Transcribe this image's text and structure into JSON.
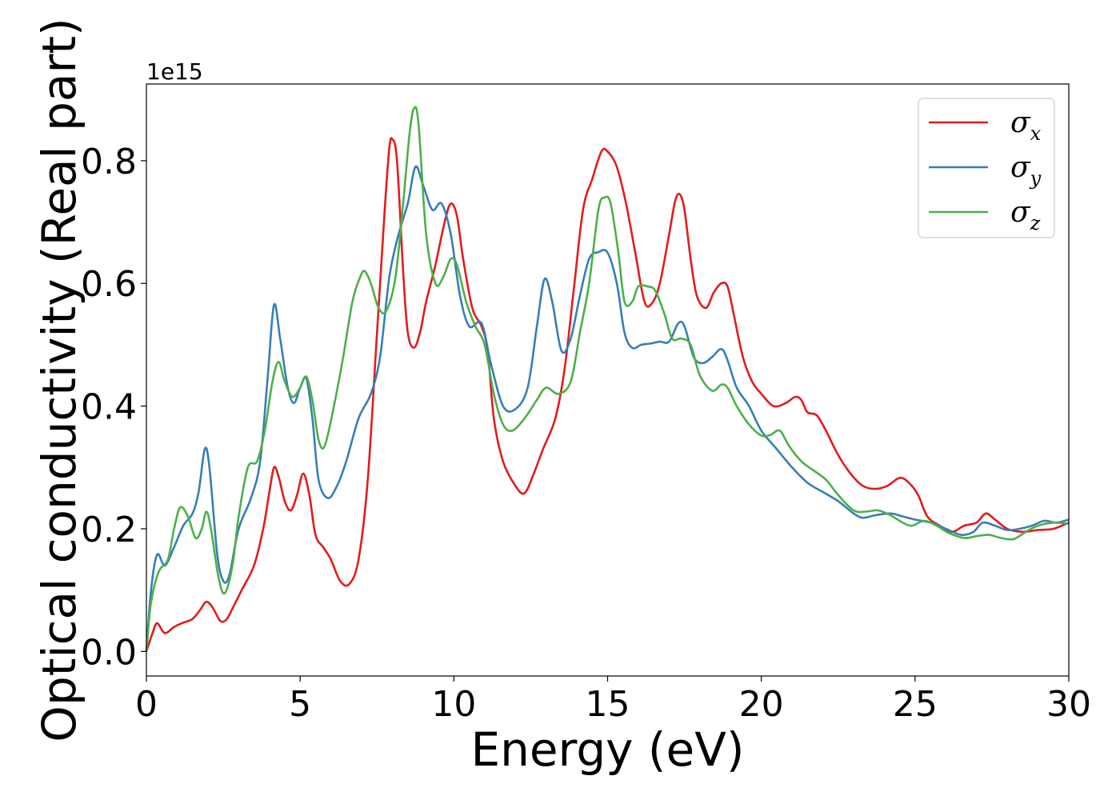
{
  "chart_data": {
    "type": "line",
    "xlabel": "Energy (eV)",
    "ylabel": "Optical conductivity (Real part)",
    "y_offset_label": "1e15",
    "xlim": [
      0,
      30
    ],
    "ylim": [
      -0.04,
      0.925
    ],
    "x_ticks": [
      0,
      5,
      10,
      15,
      20,
      25,
      30
    ],
    "x_tick_labels": [
      "0",
      "5",
      "10",
      "15",
      "20",
      "25",
      "30"
    ],
    "y_ticks": [
      0.0,
      0.2,
      0.4,
      0.6,
      0.8
    ],
    "y_tick_labels": [
      "0.0",
      "0.2",
      "0.4",
      "0.6",
      "0.8"
    ],
    "grid": false,
    "legend_position": "top-right",
    "series": [
      {
        "name": "σx",
        "symbol": "σ",
        "subscript": "x",
        "color": "#e41a1c",
        "points": [
          [
            0,
            0
          ],
          [
            0.2,
            0.03
          ],
          [
            0.35,
            0.046
          ],
          [
            0.6,
            0.03
          ],
          [
            0.9,
            0.04
          ],
          [
            1.2,
            0.047
          ],
          [
            1.5,
            0.053
          ],
          [
            1.75,
            0.068
          ],
          [
            1.95,
            0.081
          ],
          [
            2.15,
            0.072
          ],
          [
            2.4,
            0.05
          ],
          [
            2.6,
            0.052
          ],
          [
            2.8,
            0.07
          ],
          [
            3.1,
            0.1
          ],
          [
            3.5,
            0.14
          ],
          [
            3.8,
            0.2
          ],
          [
            4.0,
            0.26
          ],
          [
            4.15,
            0.3
          ],
          [
            4.3,
            0.285
          ],
          [
            4.5,
            0.245
          ],
          [
            4.7,
            0.23
          ],
          [
            4.9,
            0.255
          ],
          [
            5.1,
            0.29
          ],
          [
            5.3,
            0.255
          ],
          [
            5.5,
            0.19
          ],
          [
            5.75,
            0.17
          ],
          [
            6.0,
            0.15
          ],
          [
            6.3,
            0.115
          ],
          [
            6.6,
            0.11
          ],
          [
            6.9,
            0.15
          ],
          [
            7.2,
            0.28
          ],
          [
            7.5,
            0.52
          ],
          [
            7.75,
            0.72
          ],
          [
            7.9,
            0.82
          ],
          [
            8.0,
            0.835
          ],
          [
            8.15,
            0.8
          ],
          [
            8.35,
            0.62
          ],
          [
            8.5,
            0.52
          ],
          [
            8.7,
            0.495
          ],
          [
            8.9,
            0.52
          ],
          [
            9.1,
            0.57
          ],
          [
            9.4,
            0.63
          ],
          [
            9.7,
            0.7
          ],
          [
            9.9,
            0.73
          ],
          [
            10.1,
            0.71
          ],
          [
            10.3,
            0.64
          ],
          [
            10.6,
            0.56
          ],
          [
            10.9,
            0.53
          ],
          [
            11.1,
            0.49
          ],
          [
            11.3,
            0.38
          ],
          [
            11.6,
            0.31
          ],
          [
            12.0,
            0.27
          ],
          [
            12.3,
            0.258
          ],
          [
            12.6,
            0.29
          ],
          [
            12.9,
            0.33
          ],
          [
            13.3,
            0.38
          ],
          [
            13.6,
            0.46
          ],
          [
            13.9,
            0.59
          ],
          [
            14.2,
            0.72
          ],
          [
            14.5,
            0.77
          ],
          [
            14.8,
            0.815
          ],
          [
            15.0,
            0.815
          ],
          [
            15.3,
            0.79
          ],
          [
            15.6,
            0.73
          ],
          [
            15.9,
            0.65
          ],
          [
            16.2,
            0.57
          ],
          [
            16.45,
            0.568
          ],
          [
            16.7,
            0.6
          ],
          [
            17.0,
            0.68
          ],
          [
            17.2,
            0.735
          ],
          [
            17.35,
            0.745
          ],
          [
            17.5,
            0.72
          ],
          [
            17.7,
            0.64
          ],
          [
            17.9,
            0.58
          ],
          [
            18.2,
            0.56
          ],
          [
            18.45,
            0.585
          ],
          [
            18.7,
            0.6
          ],
          [
            18.9,
            0.595
          ],
          [
            19.1,
            0.55
          ],
          [
            19.4,
            0.48
          ],
          [
            19.7,
            0.44
          ],
          [
            20.0,
            0.42
          ],
          [
            20.4,
            0.4
          ],
          [
            20.8,
            0.405
          ],
          [
            21.1,
            0.415
          ],
          [
            21.3,
            0.41
          ],
          [
            21.5,
            0.39
          ],
          [
            21.8,
            0.385
          ],
          [
            22.1,
            0.36
          ],
          [
            22.5,
            0.32
          ],
          [
            22.9,
            0.29
          ],
          [
            23.3,
            0.27
          ],
          [
            23.7,
            0.265
          ],
          [
            24.1,
            0.27
          ],
          [
            24.5,
            0.283
          ],
          [
            24.8,
            0.275
          ],
          [
            25.1,
            0.255
          ],
          [
            25.4,
            0.22
          ],
          [
            25.8,
            0.205
          ],
          [
            26.2,
            0.195
          ],
          [
            26.6,
            0.205
          ],
          [
            27.0,
            0.21
          ],
          [
            27.3,
            0.225
          ],
          [
            27.6,
            0.215
          ],
          [
            28.0,
            0.2
          ],
          [
            28.5,
            0.195
          ],
          [
            29.0,
            0.198
          ],
          [
            29.5,
            0.2
          ],
          [
            30.0,
            0.21
          ]
        ]
      },
      {
        "name": "σy",
        "symbol": "σ",
        "subscript": "y",
        "color": "#377eb8",
        "points": [
          [
            0,
            0
          ],
          [
            0.15,
            0.1
          ],
          [
            0.35,
            0.158
          ],
          [
            0.6,
            0.14
          ],
          [
            0.9,
            0.17
          ],
          [
            1.2,
            0.205
          ],
          [
            1.5,
            0.225
          ],
          [
            1.7,
            0.26
          ],
          [
            1.9,
            0.33
          ],
          [
            2.05,
            0.3
          ],
          [
            2.3,
            0.16
          ],
          [
            2.5,
            0.115
          ],
          [
            2.7,
            0.125
          ],
          [
            3.0,
            0.2
          ],
          [
            3.4,
            0.25
          ],
          [
            3.7,
            0.31
          ],
          [
            3.95,
            0.45
          ],
          [
            4.15,
            0.565
          ],
          [
            4.35,
            0.51
          ],
          [
            4.6,
            0.43
          ],
          [
            4.8,
            0.405
          ],
          [
            5.0,
            0.43
          ],
          [
            5.2,
            0.445
          ],
          [
            5.4,
            0.38
          ],
          [
            5.6,
            0.28
          ],
          [
            5.9,
            0.25
          ],
          [
            6.2,
            0.27
          ],
          [
            6.5,
            0.31
          ],
          [
            6.9,
            0.38
          ],
          [
            7.3,
            0.42
          ],
          [
            7.6,
            0.48
          ],
          [
            7.9,
            0.61
          ],
          [
            8.2,
            0.68
          ],
          [
            8.5,
            0.73
          ],
          [
            8.75,
            0.79
          ],
          [
            9.0,
            0.76
          ],
          [
            9.3,
            0.72
          ],
          [
            9.6,
            0.73
          ],
          [
            9.9,
            0.68
          ],
          [
            10.2,
            0.58
          ],
          [
            10.5,
            0.53
          ],
          [
            10.9,
            0.535
          ],
          [
            11.2,
            0.47
          ],
          [
            11.6,
            0.4
          ],
          [
            12.0,
            0.395
          ],
          [
            12.4,
            0.43
          ],
          [
            12.7,
            0.53
          ],
          [
            12.95,
            0.607
          ],
          [
            13.2,
            0.57
          ],
          [
            13.5,
            0.49
          ],
          [
            13.8,
            0.51
          ],
          [
            14.1,
            0.58
          ],
          [
            14.4,
            0.64
          ],
          [
            14.7,
            0.651
          ],
          [
            15.0,
            0.65
          ],
          [
            15.3,
            0.6
          ],
          [
            15.55,
            0.52
          ],
          [
            15.8,
            0.495
          ],
          [
            16.1,
            0.5
          ],
          [
            16.4,
            0.502
          ],
          [
            16.7,
            0.505
          ],
          [
            17.0,
            0.505
          ],
          [
            17.3,
            0.535
          ],
          [
            17.5,
            0.53
          ],
          [
            17.8,
            0.48
          ],
          [
            18.1,
            0.47
          ],
          [
            18.4,
            0.48
          ],
          [
            18.7,
            0.493
          ],
          [
            18.9,
            0.475
          ],
          [
            19.2,
            0.43
          ],
          [
            19.6,
            0.4
          ],
          [
            20.0,
            0.36
          ],
          [
            20.5,
            0.33
          ],
          [
            21.0,
            0.3
          ],
          [
            21.5,
            0.275
          ],
          [
            22.0,
            0.26
          ],
          [
            22.5,
            0.245
          ],
          [
            23.0,
            0.225
          ],
          [
            23.3,
            0.218
          ],
          [
            23.7,
            0.222
          ],
          [
            24.2,
            0.225
          ],
          [
            24.6,
            0.22
          ],
          [
            25.0,
            0.215
          ],
          [
            25.5,
            0.21
          ],
          [
            26.0,
            0.2
          ],
          [
            26.5,
            0.19
          ],
          [
            26.9,
            0.195
          ],
          [
            27.2,
            0.21
          ],
          [
            27.6,
            0.205
          ],
          [
            28.0,
            0.198
          ],
          [
            28.4,
            0.2
          ],
          [
            28.8,
            0.205
          ],
          [
            29.2,
            0.213
          ],
          [
            29.6,
            0.21
          ],
          [
            30.0,
            0.215
          ]
        ]
      },
      {
        "name": "σz",
        "symbol": "σ",
        "subscript": "z",
        "color": "#4daf4a",
        "points": [
          [
            0,
            0
          ],
          [
            0.15,
            0.08
          ],
          [
            0.4,
            0.13
          ],
          [
            0.7,
            0.15
          ],
          [
            0.9,
            0.2
          ],
          [
            1.1,
            0.235
          ],
          [
            1.35,
            0.22
          ],
          [
            1.6,
            0.185
          ],
          [
            1.8,
            0.2
          ],
          [
            1.95,
            0.228
          ],
          [
            2.1,
            0.2
          ],
          [
            2.35,
            0.12
          ],
          [
            2.55,
            0.095
          ],
          [
            2.8,
            0.14
          ],
          [
            3.0,
            0.22
          ],
          [
            3.3,
            0.3
          ],
          [
            3.6,
            0.31
          ],
          [
            3.85,
            0.36
          ],
          [
            4.1,
            0.44
          ],
          [
            4.3,
            0.472
          ],
          [
            4.5,
            0.44
          ],
          [
            4.75,
            0.415
          ],
          [
            5.0,
            0.43
          ],
          [
            5.2,
            0.448
          ],
          [
            5.4,
            0.41
          ],
          [
            5.6,
            0.345
          ],
          [
            5.8,
            0.335
          ],
          [
            6.1,
            0.4
          ],
          [
            6.4,
            0.48
          ],
          [
            6.7,
            0.57
          ],
          [
            6.95,
            0.61
          ],
          [
            7.1,
            0.62
          ],
          [
            7.3,
            0.6
          ],
          [
            7.55,
            0.56
          ],
          [
            7.8,
            0.555
          ],
          [
            8.1,
            0.61
          ],
          [
            8.35,
            0.73
          ],
          [
            8.55,
            0.84
          ],
          [
            8.7,
            0.885
          ],
          [
            8.85,
            0.86
          ],
          [
            9.1,
            0.68
          ],
          [
            9.4,
            0.6
          ],
          [
            9.65,
            0.61
          ],
          [
            9.9,
            0.64
          ],
          [
            10.1,
            0.63
          ],
          [
            10.4,
            0.57
          ],
          [
            10.7,
            0.53
          ],
          [
            11.0,
            0.5
          ],
          [
            11.3,
            0.42
          ],
          [
            11.6,
            0.37
          ],
          [
            11.9,
            0.36
          ],
          [
            12.3,
            0.38
          ],
          [
            12.7,
            0.41
          ],
          [
            13.0,
            0.43
          ],
          [
            13.4,
            0.42
          ],
          [
            13.8,
            0.44
          ],
          [
            14.1,
            0.52
          ],
          [
            14.4,
            0.6
          ],
          [
            14.7,
            0.72
          ],
          [
            14.9,
            0.74
          ],
          [
            15.1,
            0.73
          ],
          [
            15.35,
            0.65
          ],
          [
            15.55,
            0.57
          ],
          [
            15.8,
            0.57
          ],
          [
            16.0,
            0.595
          ],
          [
            16.3,
            0.595
          ],
          [
            16.55,
            0.588
          ],
          [
            16.85,
            0.55
          ],
          [
            17.1,
            0.51
          ],
          [
            17.4,
            0.51
          ],
          [
            17.7,
            0.5
          ],
          [
            18.0,
            0.45
          ],
          [
            18.4,
            0.425
          ],
          [
            18.7,
            0.435
          ],
          [
            18.9,
            0.43
          ],
          [
            19.2,
            0.4
          ],
          [
            19.6,
            0.37
          ],
          [
            20.0,
            0.352
          ],
          [
            20.3,
            0.353
          ],
          [
            20.6,
            0.36
          ],
          [
            20.9,
            0.335
          ],
          [
            21.3,
            0.31
          ],
          [
            21.7,
            0.295
          ],
          [
            22.1,
            0.28
          ],
          [
            22.5,
            0.255
          ],
          [
            23.0,
            0.23
          ],
          [
            23.4,
            0.228
          ],
          [
            23.8,
            0.23
          ],
          [
            24.2,
            0.222
          ],
          [
            24.6,
            0.21
          ],
          [
            24.9,
            0.205
          ],
          [
            25.3,
            0.213
          ],
          [
            25.7,
            0.205
          ],
          [
            26.1,
            0.193
          ],
          [
            26.6,
            0.185
          ],
          [
            27.0,
            0.188
          ],
          [
            27.4,
            0.19
          ],
          [
            27.8,
            0.185
          ],
          [
            28.2,
            0.183
          ],
          [
            28.6,
            0.195
          ],
          [
            29.0,
            0.205
          ],
          [
            29.5,
            0.21
          ],
          [
            30.0,
            0.208
          ]
        ]
      }
    ]
  }
}
